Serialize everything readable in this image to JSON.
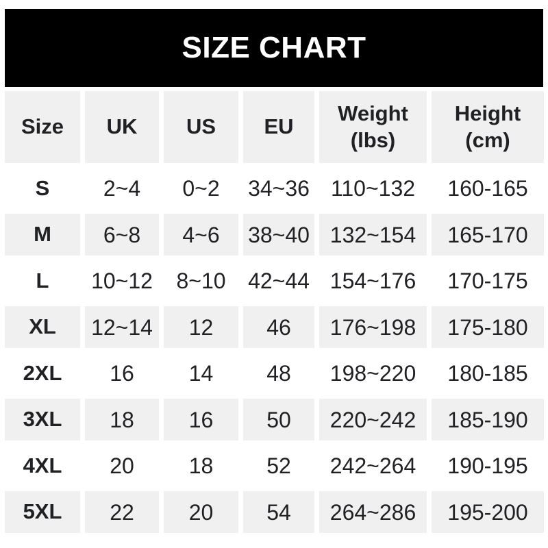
{
  "banner": {
    "title": "SIZE CHART"
  },
  "chart_data": {
    "type": "table",
    "title": "SIZE CHART",
    "columns": [
      "Size",
      "UK",
      "US",
      "EU",
      "Weight\n(lbs)",
      "Height\n(cm)"
    ],
    "rows": [
      {
        "size": "S",
        "uk": "2~4",
        "us": "0~2",
        "eu": "34~36",
        "weight_lbs": "110~132",
        "height_cm": "160-165"
      },
      {
        "size": "M",
        "uk": "6~8",
        "us": "4~6",
        "eu": "38~40",
        "weight_lbs": "132~154",
        "height_cm": "165-170"
      },
      {
        "size": "L",
        "uk": "10~12",
        "us": "8~10",
        "eu": "42~44",
        "weight_lbs": "154~176",
        "height_cm": "170-175"
      },
      {
        "size": "XL",
        "uk": "12~14",
        "us": "12",
        "eu": "46",
        "weight_lbs": "176~198",
        "height_cm": "175-180"
      },
      {
        "size": "2XL",
        "uk": "16",
        "us": "14",
        "eu": "48",
        "weight_lbs": "198~220",
        "height_cm": "180-185"
      },
      {
        "size": "3XL",
        "uk": "18",
        "us": "16",
        "eu": "50",
        "weight_lbs": "220~242",
        "height_cm": "185-190"
      },
      {
        "size": "4XL",
        "uk": "20",
        "us": "18",
        "eu": "52",
        "weight_lbs": "242~264",
        "height_cm": "190-195"
      },
      {
        "size": "5XL",
        "uk": "22",
        "us": "20",
        "eu": "54",
        "weight_lbs": "264~286",
        "height_cm": "195-200"
      }
    ]
  },
  "colors": {
    "banner_bg": "#000000",
    "banner_text": "#ffffff",
    "row_bg": "#ffffff",
    "row_alt_bg": "#f0f0f0",
    "text": "#202124"
  }
}
